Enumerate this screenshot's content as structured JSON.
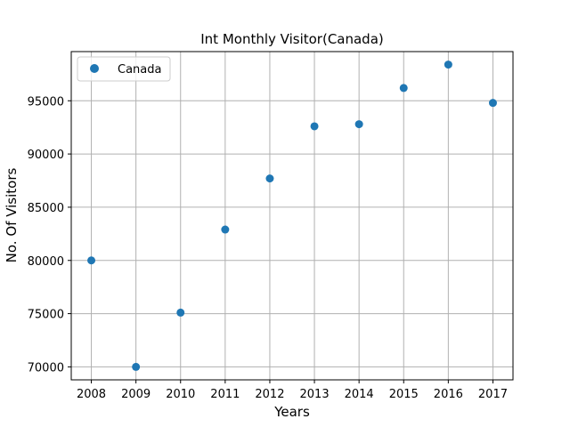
{
  "chart_data": {
    "type": "scatter",
    "title": "Int Monthly Visitor(Canada)",
    "xlabel": "Years",
    "ylabel": "No. Of Visitors",
    "x": [
      2008,
      2009,
      2010,
      2011,
      2012,
      2013,
      2014,
      2015,
      2016,
      2017
    ],
    "series": [
      {
        "name": "Canada",
        "color": "#1f77b4",
        "values": [
          80000,
          70000,
          75100,
          82900,
          87700,
          92600,
          92800,
          96200,
          98400,
          94800
        ]
      }
    ],
    "xticks": [
      2008,
      2009,
      2010,
      2011,
      2012,
      2013,
      2014,
      2015,
      2016,
      2017
    ],
    "yticks": [
      70000,
      75000,
      80000,
      85000,
      90000,
      95000
    ],
    "xlim": [
      2007.55,
      2017.45
    ],
    "ylim": [
      68780,
      99620
    ],
    "grid": true,
    "legend_position": "top-left"
  }
}
